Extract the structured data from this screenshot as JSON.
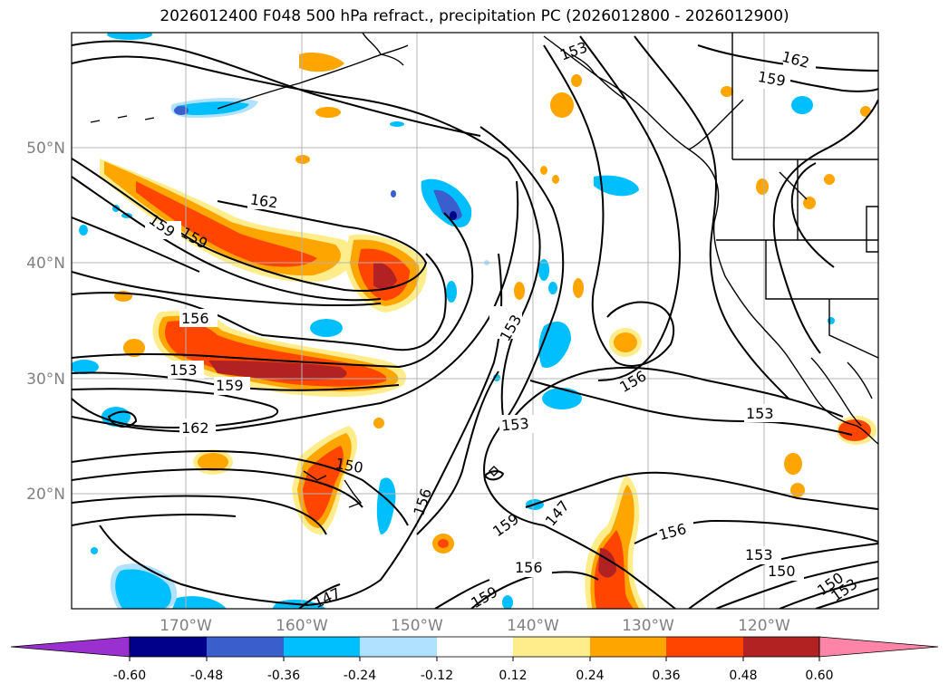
{
  "title": "2026012400 F048 500 hPa refract., precipitation PC (2026012800 - 2026012900)",
  "lat_ticks": [
    "50°N",
    "40°N",
    "30°N",
    "20°N"
  ],
  "lon_ticks": [
    "170°W",
    "160°W",
    "150°W",
    "140°W",
    "130°W",
    "120°W"
  ],
  "contour_labels": [
    "162",
    "159",
    "159",
    "159",
    "162",
    "156",
    "153",
    "159",
    "162",
    "153",
    "150",
    "156",
    "153",
    "153",
    "156",
    "159",
    "147",
    "153",
    "156",
    "153",
    "150",
    "150",
    "153",
    "147",
    "156",
    "159"
  ],
  "colorbar": {
    "labels": [
      "-0.60",
      "-0.48",
      "-0.36",
      "-0.24",
      "-0.12",
      "0.12",
      "0.24",
      "0.36",
      "0.48",
      "0.60"
    ],
    "colors": [
      "#9b30d0",
      "#00008b",
      "#3a5fcd",
      "#00bfff",
      "#b0e2ff",
      "#ffffff",
      "#ffec8b",
      "#ffa500",
      "#ff4500",
      "#b22222",
      "#ff85a8"
    ]
  }
}
